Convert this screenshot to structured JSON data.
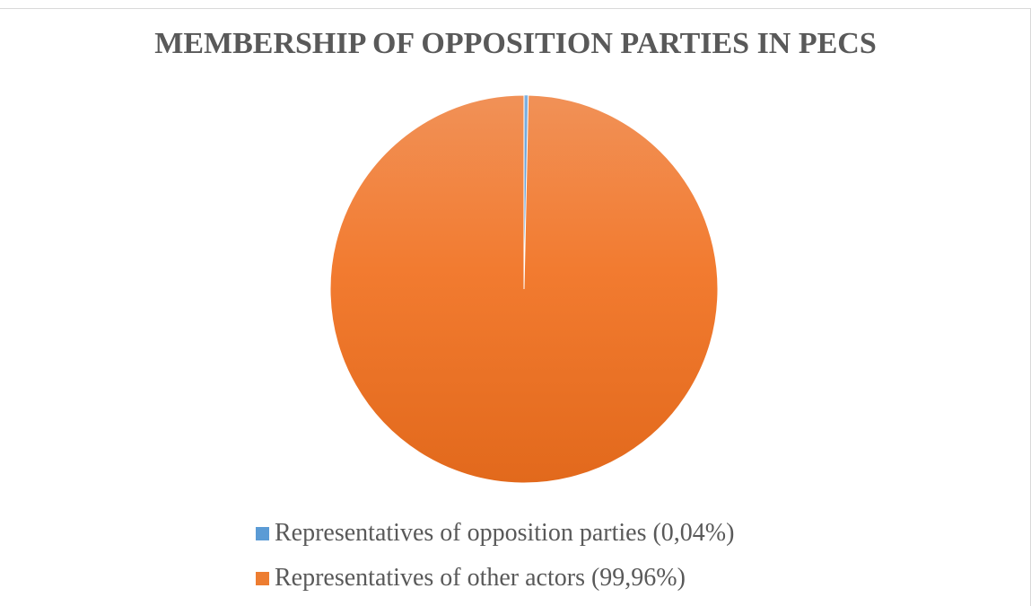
{
  "chart_data": {
    "type": "pie",
    "title": "MEMBERSHIP OF OPPOSITION PARTIES IN PECS",
    "slices": [
      {
        "label": "Representatives of opposition parties (0,04%)",
        "value": 0.04,
        "color": "#5b9bd5"
      },
      {
        "label": "Representatives of other actors (99,96%)",
        "value": 99.96,
        "color": "#ed7d31"
      }
    ],
    "legend_position": "bottom"
  }
}
